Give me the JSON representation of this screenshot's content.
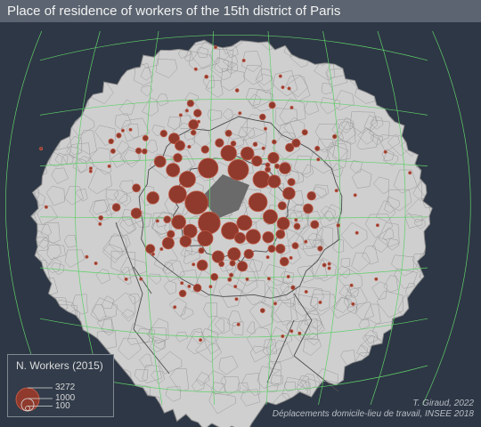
{
  "title": "Place of residence of workers of the 15th district of Paris",
  "legend": {
    "title": "N. Workers (2015)",
    "values": [
      "3272",
      "1000",
      "100"
    ]
  },
  "credits": {
    "author": "T. Giraud, 2022",
    "source": "Déplacements domicile-lieu de travail, INSEE 2018"
  },
  "colors": {
    "background": "#2e3745",
    "title_bar": "#5b6470",
    "land": "#cfcfcf",
    "commune_border": "#9a9a9a",
    "department_border": "#4d4d4d",
    "district_15": "#6a6a6a",
    "graticule": "#5fcf6a",
    "symbol_fill": "#8f3a2c",
    "symbol_stroke": "#c05a48"
  },
  "symbol_scale": {
    "max_value": 3272
  },
  "workers": [
    3272,
    2950,
    2600,
    2400,
    2100,
    1900,
    1800,
    1750,
    1600,
    1500,
    1450,
    1400,
    1300,
    1250,
    1200,
    1150,
    1100,
    1050,
    1000,
    980,
    950,
    920,
    900,
    880,
    850,
    820,
    800,
    780,
    760,
    740,
    720,
    700,
    680,
    660,
    640,
    620,
    600,
    580,
    560,
    540,
    520,
    500,
    480,
    470,
    460,
    450,
    440,
    430,
    420,
    410,
    400,
    390,
    380,
    370,
    360,
    350,
    340,
    330,
    320,
    310,
    300,
    290,
    280,
    270,
    260,
    250,
    240,
    230,
    220,
    210,
    200,
    195,
    190,
    185,
    180,
    175,
    170,
    165,
    160,
    155,
    150,
    145,
    140,
    135,
    130,
    125,
    120,
    115,
    110,
    105,
    100,
    95,
    90,
    85,
    80,
    75,
    70,
    65,
    60,
    55,
    50,
    48,
    46,
    44,
    42,
    40,
    38,
    36,
    34,
    32,
    30,
    28,
    26,
    24,
    22,
    20,
    19,
    18,
    17,
    16,
    15,
    14,
    13,
    12,
    11,
    10,
    10,
    9,
    9,
    8,
    8,
    7,
    7,
    6,
    6,
    5,
    5,
    5,
    4,
    4,
    4,
    3,
    3,
    3,
    3,
    2,
    2,
    2,
    2,
    2,
    2,
    1,
    1,
    1,
    1,
    1,
    1,
    1,
    1,
    1,
    1
  ]
}
